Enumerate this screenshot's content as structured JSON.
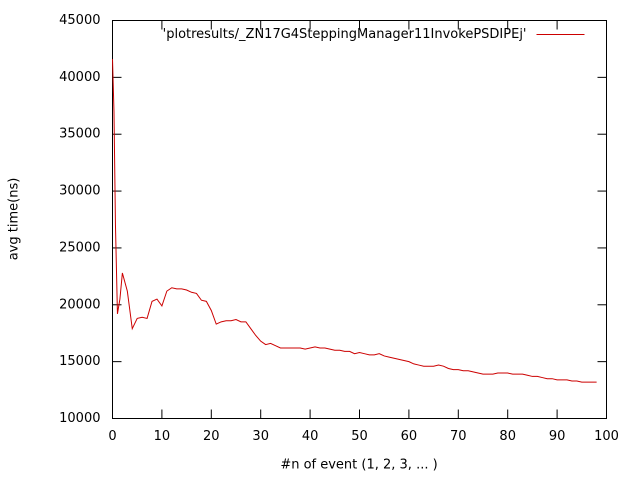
{
  "chart_data": {
    "type": "line",
    "xlabel": "#n of event (1, 2, 3, ... )",
    "ylabel": "avg time(ns)",
    "x": [
      0,
      0.3,
      0.6,
      1,
      1.5,
      2,
      3,
      4,
      5,
      6,
      7,
      8,
      9,
      10,
      11,
      12,
      13,
      14,
      15,
      16,
      17,
      18,
      19,
      20,
      21,
      22,
      23,
      24,
      25,
      26,
      27,
      28,
      29,
      30,
      31,
      32,
      33,
      34,
      35,
      36,
      37,
      38,
      39,
      40,
      41,
      42,
      43,
      44,
      45,
      46,
      47,
      48,
      49,
      50,
      51,
      52,
      53,
      54,
      55,
      56,
      57,
      58,
      59,
      60,
      61,
      62,
      63,
      64,
      65,
      66,
      67,
      68,
      69,
      70,
      71,
      72,
      73,
      74,
      75,
      76,
      77,
      78,
      79,
      80,
      81,
      82,
      83,
      84,
      85,
      86,
      87,
      88,
      89,
      90,
      91,
      92,
      93,
      94,
      95,
      96,
      97,
      98
    ],
    "series": [
      {
        "name": "'plotresults/_ZN17G4SteppingManager11InvokePSDIPEj'",
        "color": "#cc0000",
        "values": [
          41600,
          37000,
          27000,
          19200,
          20500,
          22800,
          21200,
          17900,
          18800,
          18900,
          18800,
          20300,
          20500,
          19900,
          21200,
          21500,
          21400,
          21400,
          21300,
          21100,
          21000,
          20400,
          20300,
          19500,
          18300,
          18500,
          18600,
          18600,
          18700,
          18500,
          18500,
          17900,
          17300,
          16800,
          16500,
          16600,
          16400,
          16200,
          16200,
          16200,
          16200,
          16200,
          16100,
          16200,
          16300,
          16200,
          16200,
          16100,
          16000,
          16000,
          15900,
          15900,
          15700,
          15800,
          15700,
          15600,
          15600,
          15700,
          15500,
          15400,
          15300,
          15200,
          15100,
          15000,
          14800,
          14700,
          14600,
          14600,
          14600,
          14700,
          14600,
          14400,
          14300,
          14300,
          14200,
          14200,
          14100,
          14000,
          13900,
          13900,
          13900,
          14000,
          14000,
          14000,
          13900,
          13900,
          13900,
          13800,
          13700,
          13700,
          13600,
          13500,
          13500,
          13400,
          13400,
          13400,
          13300,
          13300,
          13200,
          13200,
          13200,
          13200
        ]
      }
    ],
    "xlim": [
      0,
      100
    ],
    "xticks": [
      0,
      10,
      20,
      30,
      40,
      50,
      60,
      70,
      80,
      90,
      100
    ],
    "ylim": [
      10000,
      45000
    ],
    "yticks": [
      10000,
      15000,
      20000,
      25000,
      30000,
      35000,
      40000,
      45000
    ],
    "grid": false,
    "legend": "top-right"
  }
}
